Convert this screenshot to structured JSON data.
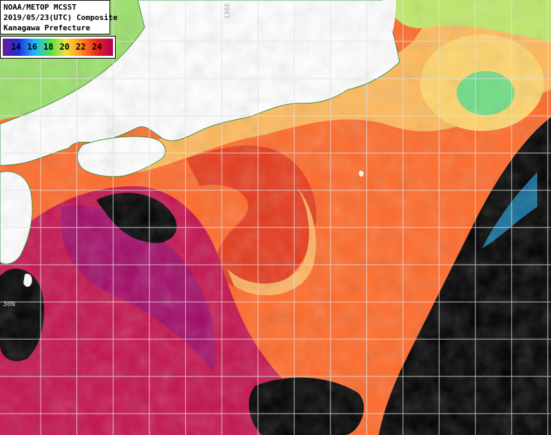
{
  "header": {
    "line1": "NOAA/METOP MCSST",
    "line2": "2019/05/23(UTC) Composite",
    "line3": "Kanagawa Prefecture"
  },
  "legend": {
    "labels": [
      "14",
      "16",
      "18",
      "20",
      "22",
      "24"
    ],
    "colors": [
      "#6a1a9a",
      "#1e2ed0",
      "#1fb6ff",
      "#4de04d",
      "#f5e03a",
      "#ff8a1f",
      "#e8241a",
      "#b0005a"
    ]
  },
  "grid": {
    "lat_label": "30N",
    "lon_label": "136E"
  },
  "palette": {
    "land": "#ffffff",
    "cloud": "#000000",
    "kuroshio": "#e63a1c",
    "warm": "#ff6a2a",
    "cool": "#ffb95a",
    "cold": "#bfe86a",
    "eddy": "#6fdc84",
    "offshore": "#c4124e",
    "purple": "#9a0a6e",
    "grid_line": "#e0e0e0"
  }
}
